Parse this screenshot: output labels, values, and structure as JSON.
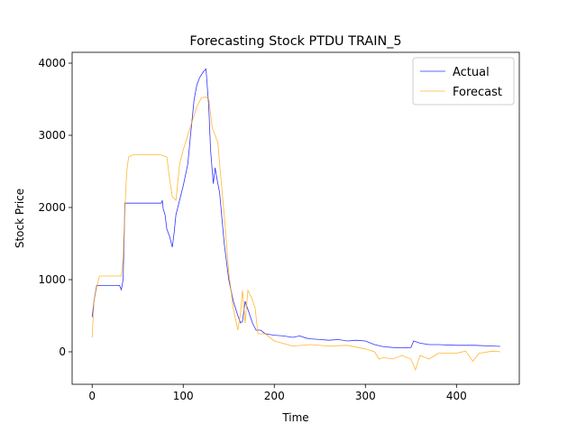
{
  "chart_data": {
    "type": "line",
    "title": "Forecasting Stock PTDU TRAIN_5",
    "x_label": "Time",
    "y_label": "Stock Price",
    "xlim": [
      -22,
      469
    ],
    "ylim": [
      -450,
      4150
    ],
    "xticks": [
      0,
      100,
      200,
      300,
      400
    ],
    "yticks": [
      0,
      1000,
      2000,
      3000,
      4000
    ],
    "legend": "upper right",
    "series": [
      {
        "name": "Actual",
        "color": "#0000ff",
        "x": [
          0,
          2,
          5,
          10,
          20,
          30,
          32,
          34,
          36,
          40,
          50,
          60,
          70,
          76,
          77,
          78,
          80,
          82,
          85,
          88,
          90,
          92,
          95,
          100,
          105,
          108,
          112,
          115,
          118,
          122,
          125,
          128,
          130,
          133,
          135,
          137,
          140,
          145,
          150,
          155,
          160,
          163,
          165,
          168,
          172,
          176,
          180,
          185,
          190,
          200,
          210,
          220,
          228,
          235,
          240,
          250,
          260,
          270,
          280,
          290,
          300,
          310,
          320,
          330,
          340,
          350,
          353,
          360,
          370,
          380,
          400,
          420,
          440,
          448
        ],
        "values": [
          480,
          700,
          920,
          920,
          920,
          920,
          860,
          1000,
          2060,
          2060,
          2060,
          2060,
          2060,
          2060,
          2100,
          1980,
          1900,
          1700,
          1600,
          1450,
          1650,
          1900,
          2050,
          2300,
          2600,
          3000,
          3500,
          3700,
          3800,
          3880,
          3920,
          3400,
          2800,
          2330,
          2550,
          2400,
          2200,
          1500,
          1000,
          700,
          500,
          400,
          420,
          700,
          550,
          400,
          300,
          300,
          250,
          230,
          220,
          200,
          220,
          190,
          180,
          170,
          160,
          170,
          150,
          160,
          150,
          100,
          70,
          60,
          55,
          60,
          150,
          120,
          100,
          100,
          90,
          90,
          80,
          75
        ]
      },
      {
        "name": "Forecast",
        "color": "#ffa500",
        "x": [
          0,
          2,
          5,
          8,
          15,
          25,
          32,
          34,
          36,
          38,
          40,
          45,
          60,
          75,
          82,
          85,
          88,
          92,
          96,
          100,
          105,
          110,
          115,
          120,
          125,
          128,
          132,
          135,
          138,
          140,
          145,
          150,
          155,
          160,
          163,
          165,
          168,
          171,
          175,
          179,
          182,
          190,
          200,
          220,
          240,
          260,
          280,
          300,
          310,
          315,
          320,
          330,
          340,
          350,
          355,
          360,
          370,
          380,
          400,
          410,
          418,
          425,
          440,
          448
        ],
        "values": [
          200,
          700,
          900,
          1050,
          1050,
          1050,
          1050,
          1300,
          2000,
          2500,
          2700,
          2730,
          2730,
          2730,
          2700,
          2400,
          2150,
          2100,
          2600,
          2800,
          3000,
          3200,
          3400,
          3520,
          3530,
          3500,
          3100,
          3000,
          2900,
          2600,
          1900,
          1100,
          600,
          300,
          550,
          850,
          400,
          850,
          750,
          600,
          250,
          250,
          150,
          80,
          100,
          80,
          90,
          40,
          0,
          -100,
          -80,
          -100,
          -50,
          -100,
          -250,
          -50,
          -100,
          -20,
          -20,
          10,
          -130,
          -20,
          10,
          0
        ]
      }
    ]
  }
}
